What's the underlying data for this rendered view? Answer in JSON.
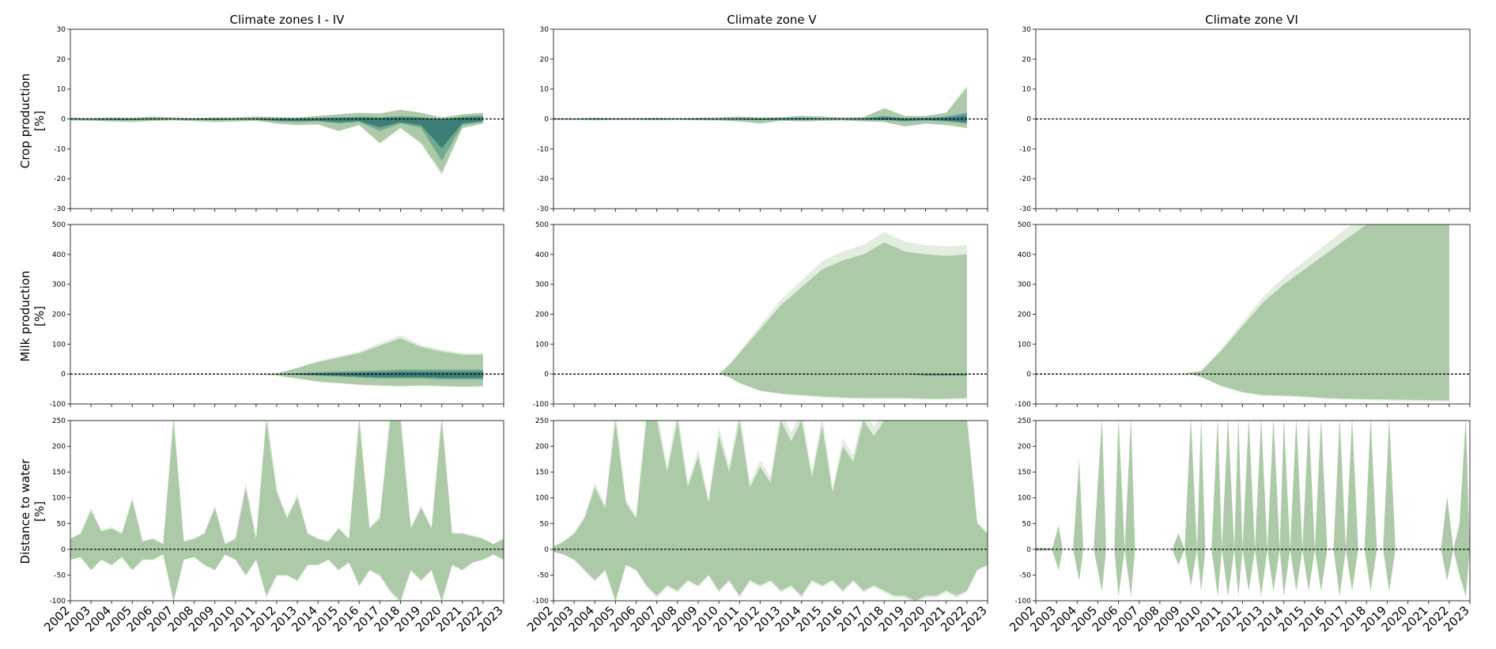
{
  "chart_data": {
    "type": "area",
    "x_ticks": [
      "2002",
      "2003",
      "2004",
      "2005",
      "2006",
      "2007",
      "2008",
      "2009",
      "2010",
      "2011",
      "2012",
      "2013",
      "2014",
      "2015",
      "2016",
      "2017",
      "2018",
      "2019",
      "2020",
      "2021",
      "2022",
      "2023"
    ],
    "xlim": [
      2002,
      2023
    ],
    "columns": [
      {
        "title": "Climate zones I - IV"
      },
      {
        "title": "Climate zone V"
      },
      {
        "title": "Climate zone VI"
      }
    ],
    "rows": [
      {
        "ylabel_line1": "Crop production",
        "ylabel_line2": "[%]",
        "ylim": [
          -30,
          30
        ],
        "yticks": [
          30,
          20,
          10,
          0,
          -10,
          -20,
          -30
        ]
      },
      {
        "ylabel_line1": "Milk production",
        "ylabel_line2": "[%]",
        "ylim": [
          -100,
          500
        ],
        "yticks": [
          500,
          400,
          300,
          200,
          100,
          0,
          -100
        ]
      },
      {
        "ylabel_line1": "Distance to water",
        "ylabel_line2": "[%]",
        "ylim": [
          -100,
          250
        ],
        "yticks": [
          250,
          200,
          150,
          100,
          50,
          0,
          -50,
          -100
        ]
      }
    ],
    "reference_line": {
      "y": 0,
      "style": "dashed",
      "color": "#000000"
    },
    "colors": {
      "light": "#a9c8a3",
      "pale": "#dbe8d7",
      "mid": "#5f9d87",
      "dark": "#2f7470",
      "blue": "#4f8ea2"
    },
    "panels": [
      {
        "row": 0,
        "col": 0,
        "x": [
          2002,
          2003,
          2004,
          2005,
          2006,
          2007,
          2008,
          2009,
          2010,
          2011,
          2012,
          2013,
          2014,
          2015,
          2016,
          2017,
          2018,
          2019,
          2020,
          2021,
          2022
        ],
        "upper": [
          0.5,
          0.3,
          0.5,
          0.4,
          0.8,
          0.5,
          0.3,
          0.5,
          0.5,
          0.8,
          0.6,
          0.5,
          1.0,
          1.5,
          2.0,
          1.8,
          3.0,
          2.0,
          0.5,
          1.5,
          2.0
        ],
        "lower": [
          -0.5,
          -0.6,
          -0.8,
          -1.0,
          -0.6,
          -0.5,
          -0.7,
          -1.0,
          -0.8,
          -0.6,
          -1.5,
          -2.0,
          -1.8,
          -4.0,
          -2.0,
          -8.0,
          -3.0,
          -8.0,
          -18.0,
          -3.0,
          -1.5
        ],
        "inner_upper": [
          0.2,
          0.1,
          0.2,
          0.1,
          0.3,
          0.2,
          0.1,
          0.2,
          0.2,
          0.3,
          0.2,
          0.2,
          0.4,
          0.6,
          0.8,
          0.6,
          1.0,
          0.6,
          0.0,
          0.8,
          1.2
        ],
        "inner_lower": [
          -0.2,
          -0.3,
          -0.4,
          -0.4,
          -0.3,
          -0.2,
          -0.3,
          -0.4,
          -0.3,
          -0.3,
          -0.8,
          -1.0,
          -0.8,
          -1.5,
          -1.0,
          -4.0,
          -1.5,
          -3.0,
          -14.0,
          -2.0,
          -1.0
        ]
      },
      {
        "row": 0,
        "col": 1,
        "x": [
          2002,
          2003,
          2004,
          2005,
          2006,
          2007,
          2008,
          2009,
          2010,
          2011,
          2012,
          2013,
          2014,
          2015,
          2016,
          2017,
          2018,
          2019,
          2020,
          2021,
          2022
        ],
        "upper": [
          0.3,
          0.2,
          0.4,
          0.3,
          0.3,
          0.4,
          0.3,
          0.4,
          0.5,
          0.8,
          0.5,
          0.6,
          1.0,
          0.8,
          0.5,
          0.6,
          3.5,
          1.0,
          1.0,
          2.0,
          10.5
        ],
        "lower": [
          -0.3,
          -0.3,
          -0.4,
          -0.3,
          -0.3,
          -0.4,
          -0.3,
          -0.4,
          -0.5,
          -0.8,
          -1.5,
          -0.6,
          -0.8,
          -0.6,
          -0.5,
          -0.8,
          -1.0,
          -2.5,
          -1.5,
          -2.0,
          -3.0
        ],
        "inner_upper": [
          0.1,
          0.1,
          0.2,
          0.1,
          0.1,
          0.2,
          0.1,
          0.2,
          0.2,
          0.3,
          0.2,
          0.3,
          0.5,
          0.3,
          0.2,
          0.3,
          1.0,
          0.3,
          0.4,
          0.8,
          2.0
        ],
        "inner_lower": [
          -0.1,
          -0.1,
          -0.2,
          -0.1,
          -0.1,
          -0.2,
          -0.1,
          -0.2,
          -0.2,
          -0.3,
          -0.4,
          -0.3,
          -0.3,
          -0.2,
          -0.2,
          -0.3,
          -0.4,
          -0.8,
          -0.5,
          -0.8,
          -1.5
        ]
      },
      {
        "row": 0,
        "col": 2,
        "x": [],
        "upper": [],
        "lower": [],
        "inner_upper": [],
        "inner_lower": []
      },
      {
        "row": 1,
        "col": 0,
        "x": [
          2002,
          2003,
          2004,
          2005,
          2006,
          2007,
          2008,
          2009,
          2010,
          2011,
          2012,
          2013,
          2014,
          2015,
          2016,
          2017,
          2018,
          2019,
          2020,
          2021,
          2022
        ],
        "upper": [
          0,
          0,
          0,
          0,
          0,
          0,
          0,
          0,
          0,
          0,
          2,
          20,
          40,
          55,
          70,
          95,
          120,
          90,
          75,
          65,
          65
        ],
        "lower": [
          0,
          0,
          0,
          0,
          0,
          0,
          0,
          0,
          0,
          0,
          -5,
          -15,
          -25,
          -30,
          -35,
          -38,
          -40,
          -38,
          -40,
          -42,
          -40
        ],
        "inner_upper": [
          0,
          0,
          0,
          0,
          0,
          0,
          0,
          0,
          0,
          0,
          0,
          3,
          6,
          8,
          10,
          12,
          15,
          15,
          15,
          15,
          15
        ],
        "inner_lower": [
          0,
          0,
          0,
          0,
          0,
          0,
          0,
          0,
          0,
          0,
          0,
          -3,
          -6,
          -8,
          -12,
          -15,
          -15,
          -15,
          -18,
          -18,
          -18
        ]
      },
      {
        "row": 1,
        "col": 1,
        "x": [
          2002,
          2003,
          2004,
          2005,
          2006,
          2007,
          2008,
          2009,
          2010,
          2010.5,
          2011,
          2012,
          2013,
          2014,
          2015,
          2016,
          2017,
          2018,
          2019,
          2020,
          2021,
          2022
        ],
        "upper": [
          0,
          0,
          0,
          0,
          0,
          0,
          0,
          0,
          0,
          30,
          70,
          150,
          230,
          290,
          350,
          380,
          400,
          440,
          410,
          400,
          395,
          400
        ],
        "lower": [
          0,
          0,
          0,
          0,
          0,
          0,
          0,
          0,
          0,
          -10,
          -30,
          -55,
          -65,
          -70,
          -75,
          -78,
          -80,
          -80,
          -80,
          -82,
          -82,
          -80
        ],
        "inner_upper": [
          0,
          0,
          0,
          0,
          0,
          0,
          0,
          0,
          0,
          0,
          0,
          0,
          0,
          0,
          0,
          0,
          0,
          0,
          0,
          0,
          0,
          0
        ],
        "inner_lower": [
          0,
          0,
          0,
          0,
          0,
          0,
          0,
          0,
          0,
          0,
          0,
          0,
          0,
          0,
          0,
          0,
          0,
          0,
          0,
          -5,
          -5,
          -5
        ]
      },
      {
        "row": 1,
        "col": 2,
        "x": [
          2002,
          2003,
          2004,
          2005,
          2006,
          2007,
          2008,
          2009,
          2009.5,
          2010,
          2011,
          2012,
          2013,
          2014,
          2015,
          2016,
          2017,
          2018,
          2019,
          2020,
          2021,
          2022
        ],
        "upper": [
          0,
          0,
          0,
          0,
          0,
          0,
          0,
          0,
          5,
          10,
          80,
          160,
          240,
          300,
          350,
          400,
          450,
          500,
          500,
          500,
          500,
          500
        ],
        "lower": [
          0,
          0,
          0,
          0,
          0,
          0,
          0,
          0,
          0,
          -10,
          -40,
          -60,
          -70,
          -72,
          -75,
          -80,
          -82,
          -84,
          -85,
          -86,
          -87,
          -88
        ],
        "inner_upper": [
          0,
          0,
          0,
          0,
          0,
          0,
          0,
          0,
          0,
          0,
          0,
          0,
          0,
          0,
          0,
          0,
          0,
          0,
          0,
          0,
          0,
          0
        ],
        "inner_lower": [
          0,
          0,
          0,
          0,
          0,
          0,
          0,
          0,
          0,
          0,
          0,
          0,
          0,
          0,
          0,
          0,
          0,
          0,
          0,
          0,
          0,
          0
        ]
      },
      {
        "row": 2,
        "col": 0,
        "x": [
          2002,
          2002.5,
          2003,
          2003.5,
          2004,
          2004.5,
          2005,
          2005.5,
          2006,
          2006.5,
          2007,
          2007.5,
          2008,
          2008.5,
          2009,
          2009.5,
          2010,
          2010.5,
          2011,
          2011.5,
          2012,
          2012.5,
          2013,
          2013.5,
          2014,
          2014.5,
          2015,
          2015.5,
          2016,
          2016.5,
          2017,
          2017.5,
          2018,
          2018.5,
          2019,
          2019.5,
          2020,
          2020.5,
          2021,
          2021.5,
          2022,
          2022.5,
          2023
        ],
        "upper": [
          20,
          30,
          75,
          35,
          40,
          30,
          95,
          15,
          20,
          10,
          250,
          15,
          20,
          30,
          80,
          10,
          20,
          120,
          20,
          250,
          110,
          60,
          100,
          30,
          20,
          15,
          40,
          20,
          250,
          40,
          60,
          250,
          250,
          40,
          80,
          40,
          250,
          30,
          30,
          25,
          20,
          10,
          20
        ],
        "lower": [
          -20,
          -15,
          -40,
          -20,
          -30,
          -15,
          -40,
          -20,
          -20,
          -10,
          -100,
          -20,
          -15,
          -30,
          -40,
          -10,
          -20,
          -50,
          -20,
          -90,
          -50,
          -50,
          -60,
          -30,
          -30,
          -20,
          -40,
          -25,
          -70,
          -40,
          -50,
          -80,
          -100,
          -40,
          -60,
          -40,
          -100,
          -30,
          -40,
          -25,
          -20,
          -10,
          -20
        ]
      },
      {
        "row": 2,
        "col": 1,
        "x": [
          2002,
          2002.5,
          2003,
          2003.5,
          2004,
          2004.5,
          2005,
          2005.5,
          2006,
          2006.5,
          2007,
          2007.5,
          2008,
          2008.5,
          2009,
          2009.5,
          2010,
          2010.5,
          2011,
          2011.5,
          2012,
          2012.5,
          2013,
          2013.5,
          2014,
          2014.5,
          2015,
          2015.5,
          2016,
          2016.5,
          2017,
          2017.5,
          2018,
          2018.5,
          2019,
          2019.5,
          2020,
          2020.5,
          2021,
          2021.5,
          2022,
          2022.5,
          2023
        ],
        "upper": [
          5,
          15,
          30,
          60,
          120,
          80,
          250,
          90,
          60,
          250,
          250,
          150,
          250,
          120,
          180,
          90,
          220,
          150,
          250,
          120,
          160,
          130,
          250,
          210,
          250,
          140,
          240,
          110,
          200,
          170,
          250,
          220,
          250,
          250,
          250,
          250,
          250,
          250,
          250,
          250,
          250,
          50,
          30
        ],
        "lower": [
          -5,
          -10,
          -20,
          -40,
          -60,
          -40,
          -100,
          -30,
          -40,
          -70,
          -90,
          -70,
          -80,
          -60,
          -70,
          -50,
          -80,
          -60,
          -90,
          -60,
          -70,
          -60,
          -80,
          -70,
          -90,
          -60,
          -70,
          -60,
          -80,
          -60,
          -80,
          -70,
          -80,
          -90,
          -90,
          -100,
          -90,
          -90,
          -80,
          -90,
          -80,
          -40,
          -30
        ]
      },
      {
        "row": 2,
        "col": 2,
        "x": [
          2002,
          2002.8,
          2003.1,
          2003.3,
          2003.6,
          2003.8,
          2004.1,
          2004.3,
          2004.6,
          2004.8,
          2005.2,
          2005.4,
          2005.6,
          2005.8,
          2006.0,
          2006.3,
          2006.6,
          2006.8,
          2007.0,
          2008.6,
          2008.9,
          2009.2,
          2009.5,
          2009.8,
          2010.0,
          2010.2,
          2010.5,
          2010.8,
          2011.0,
          2011.3,
          2011.6,
          2011.8,
          2012.0,
          2012.3,
          2012.6,
          2012.9,
          2013.2,
          2013.5,
          2013.8,
          2014.0,
          2014.3,
          2014.6,
          2014.9,
          2015.2,
          2015.5,
          2015.8,
          2016.1,
          2016.4,
          2016.7,
          2017.0,
          2017.3,
          2017.6,
          2017.9,
          2018.2,
          2018.5,
          2018.8,
          2019.1,
          2019.4,
          2019.7,
          2020.0,
          2021.4,
          2021.6,
          2021.9,
          2022.2,
          2022.5,
          2022.8,
          2023
        ],
        "upper": [
          3,
          2,
          45,
          0,
          0,
          0,
          170,
          0,
          0,
          0,
          250,
          0,
          0,
          0,
          250,
          0,
          250,
          0,
          0,
          0,
          30,
          0,
          250,
          0,
          250,
          0,
          0,
          250,
          0,
          250,
          0,
          250,
          0,
          250,
          0,
          250,
          0,
          250,
          0,
          250,
          0,
          250,
          0,
          250,
          0,
          250,
          0,
          0,
          250,
          0,
          250,
          0,
          0,
          250,
          0,
          0,
          250,
          0,
          0,
          0,
          0,
          0,
          100,
          0,
          50,
          250,
          0
        ],
        "lower": [
          -3,
          -2,
          -40,
          0,
          0,
          0,
          -60,
          0,
          0,
          0,
          -80,
          0,
          0,
          0,
          -90,
          0,
          -90,
          0,
          0,
          0,
          -30,
          0,
          -70,
          0,
          -80,
          0,
          0,
          -90,
          0,
          -90,
          0,
          -90,
          0,
          -80,
          0,
          -90,
          0,
          -80,
          0,
          -90,
          0,
          -80,
          0,
          -80,
          0,
          -80,
          0,
          0,
          -90,
          0,
          -80,
          0,
          0,
          -80,
          0,
          0,
          -80,
          0,
          0,
          0,
          0,
          0,
          -60,
          0,
          -50,
          -90,
          0
        ]
      }
    ]
  }
}
